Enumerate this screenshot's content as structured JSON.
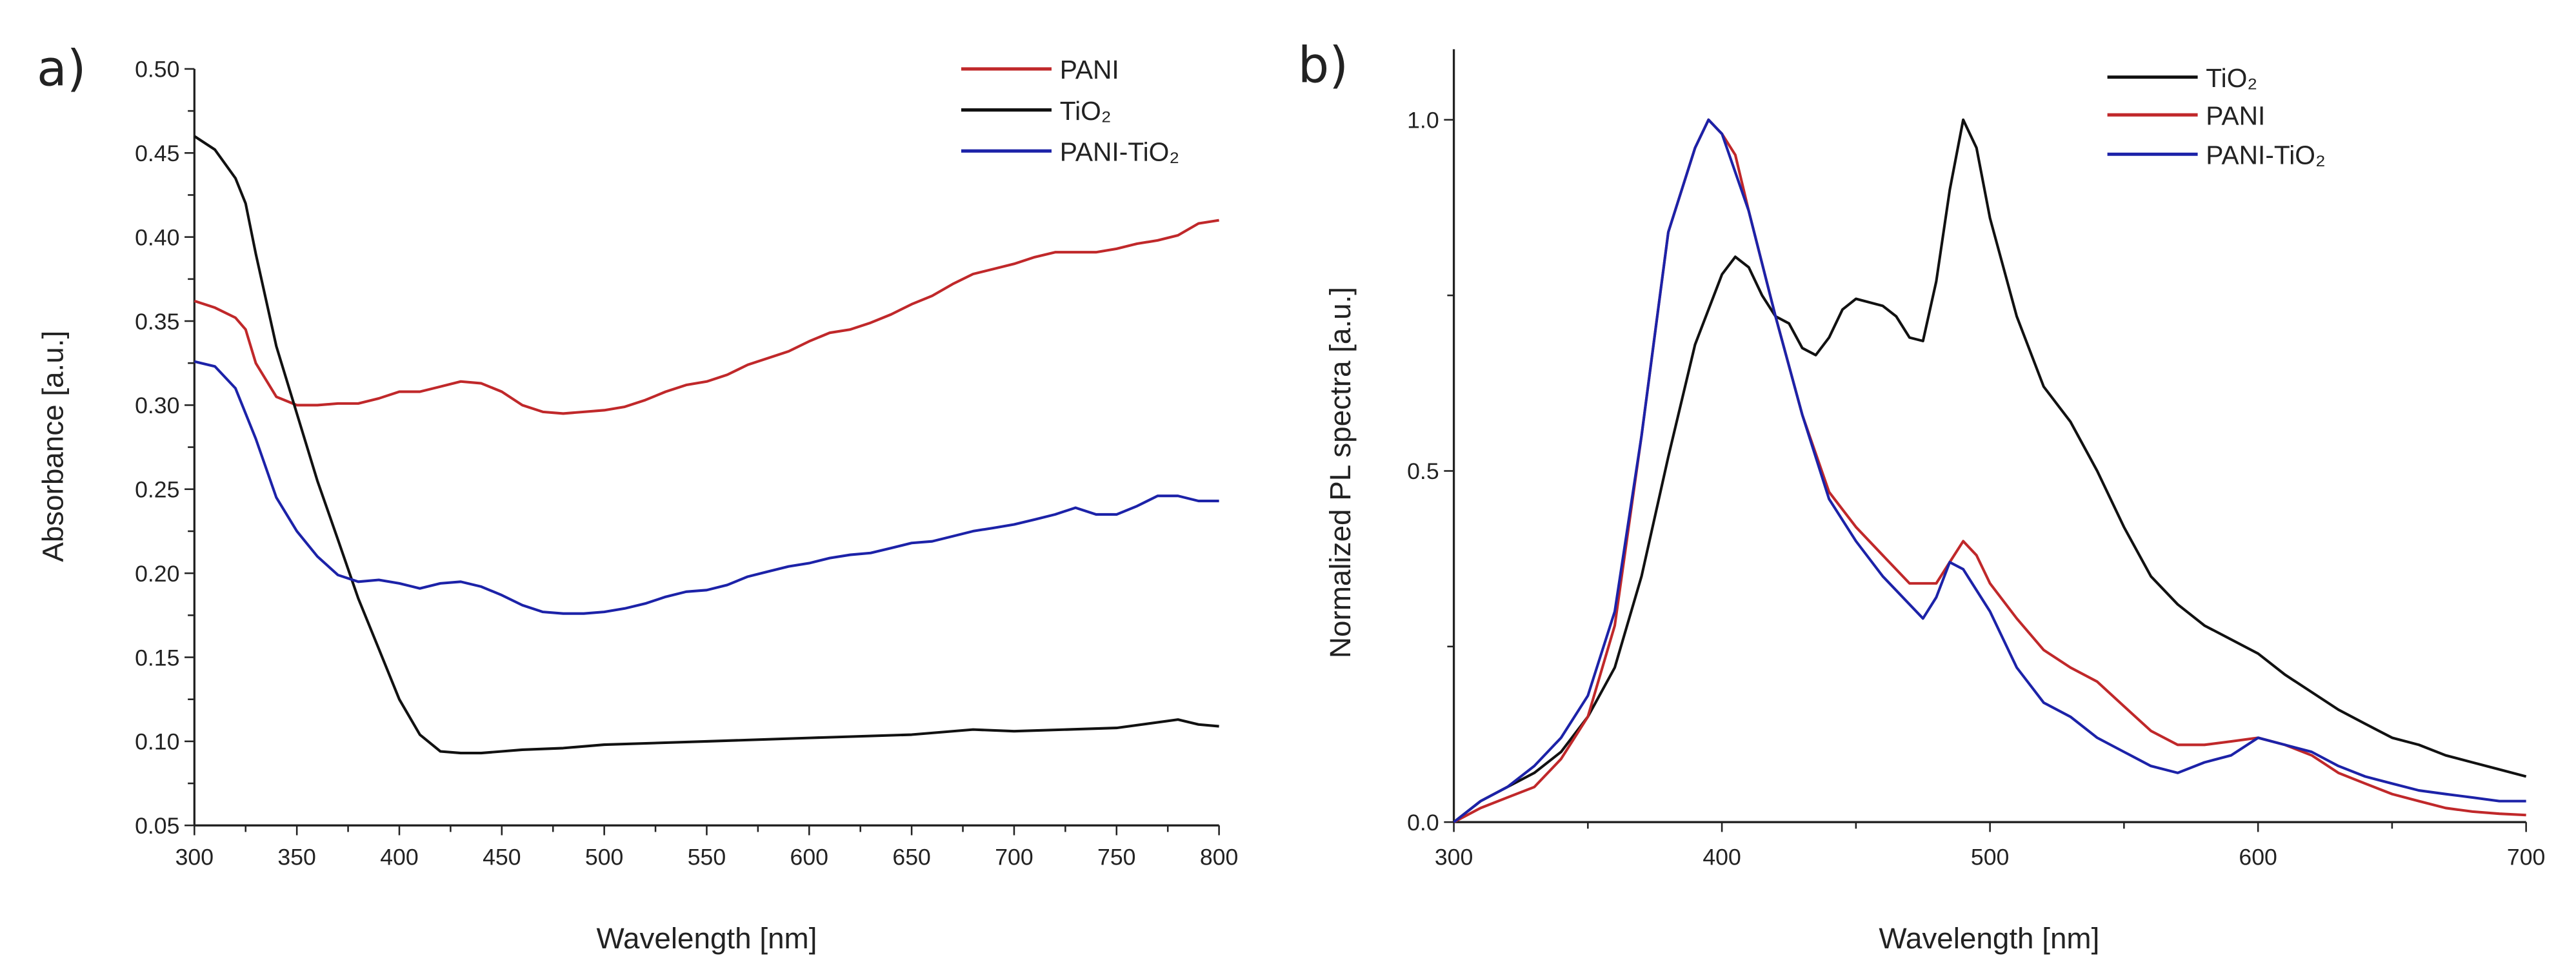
{
  "chart_data": [
    {
      "type": "line",
      "panel_label": "a)",
      "xlabel": "Wavelength [nm]",
      "ylabel": "Absorbance [a.u.]",
      "xlim": [
        300,
        800
      ],
      "ylim": [
        0.05,
        0.5
      ],
      "xticks": [
        300,
        350,
        400,
        450,
        500,
        550,
        600,
        650,
        700,
        750,
        800
      ],
      "yticks": [
        0.05,
        0.1,
        0.15,
        0.2,
        0.25,
        0.3,
        0.35,
        0.4,
        0.45,
        0.5
      ],
      "ytick_labels": [
        "0.05",
        "0.10",
        "0.15",
        "0.20",
        "0.25",
        "0.30",
        "0.35",
        "0.40",
        "0.45",
        "0.50"
      ],
      "grid": false,
      "legend_position": "top-right",
      "series": [
        {
          "name": "PANI",
          "color": "#c0282a",
          "x": [
            300,
            310,
            320,
            325,
            330,
            340,
            350,
            360,
            370,
            380,
            390,
            400,
            410,
            420,
            430,
            440,
            450,
            460,
            470,
            480,
            490,
            500,
            510,
            520,
            530,
            540,
            550,
            560,
            570,
            580,
            590,
            600,
            610,
            620,
            630,
            640,
            650,
            660,
            670,
            680,
            690,
            700,
            710,
            720,
            730,
            740,
            750,
            760,
            770,
            780,
            790,
            800
          ],
          "y": [
            0.362,
            0.358,
            0.352,
            0.345,
            0.325,
            0.305,
            0.3,
            0.3,
            0.301,
            0.301,
            0.304,
            0.308,
            0.308,
            0.311,
            0.314,
            0.313,
            0.308,
            0.3,
            0.296,
            0.295,
            0.296,
            0.297,
            0.299,
            0.303,
            0.308,
            0.312,
            0.314,
            0.318,
            0.324,
            0.328,
            0.332,
            0.338,
            0.343,
            0.345,
            0.349,
            0.354,
            0.36,
            0.365,
            0.372,
            0.378,
            0.381,
            0.384,
            0.388,
            0.391,
            0.391,
            0.391,
            0.393,
            0.396,
            0.398,
            0.401,
            0.408,
            0.41
          ]
        },
        {
          "name": "TiO₂",
          "color": "#111111",
          "x": [
            300,
            310,
            320,
            325,
            330,
            340,
            350,
            360,
            370,
            380,
            390,
            400,
            410,
            420,
            430,
            440,
            450,
            460,
            480,
            500,
            550,
            600,
            650,
            680,
            700,
            750,
            780,
            790,
            800
          ],
          "y": [
            0.46,
            0.452,
            0.435,
            0.42,
            0.39,
            0.335,
            0.295,
            0.255,
            0.22,
            0.185,
            0.155,
            0.125,
            0.104,
            0.094,
            0.093,
            0.093,
            0.094,
            0.095,
            0.096,
            0.098,
            0.1,
            0.102,
            0.104,
            0.107,
            0.106,
            0.108,
            0.113,
            0.11,
            0.109
          ]
        },
        {
          "name": "PANI-TiO₂",
          "color": "#1c22a8",
          "x": [
            300,
            310,
            320,
            330,
            340,
            350,
            360,
            370,
            380,
            390,
            400,
            410,
            420,
            430,
            440,
            450,
            460,
            470,
            480,
            490,
            500,
            510,
            520,
            530,
            540,
            550,
            560,
            570,
            580,
            590,
            600,
            610,
            620,
            630,
            640,
            650,
            660,
            670,
            680,
            690,
            700,
            710,
            720,
            730,
            740,
            750,
            760,
            770,
            780,
            790,
            800
          ],
          "y": [
            0.326,
            0.323,
            0.31,
            0.28,
            0.245,
            0.225,
            0.21,
            0.199,
            0.195,
            0.196,
            0.194,
            0.191,
            0.194,
            0.195,
            0.192,
            0.187,
            0.181,
            0.177,
            0.176,
            0.176,
            0.177,
            0.179,
            0.182,
            0.186,
            0.189,
            0.19,
            0.193,
            0.198,
            0.201,
            0.204,
            0.206,
            0.209,
            0.211,
            0.212,
            0.215,
            0.218,
            0.219,
            0.222,
            0.225,
            0.227,
            0.229,
            0.232,
            0.235,
            0.239,
            0.235,
            0.235,
            0.24,
            0.246,
            0.246,
            0.243,
            0.243
          ]
        }
      ]
    },
    {
      "type": "line",
      "panel_label": "b)",
      "xlabel": "Wavelength [nm]",
      "ylabel": "Normalized PL spectra [a.u.]",
      "xlim": [
        300,
        700
      ],
      "ylim": [
        0.0,
        1.1
      ],
      "xticks": [
        300,
        400,
        500,
        600,
        700
      ],
      "yticks": [
        0.0,
        0.5,
        1.0
      ],
      "ytick_labels": [
        "0.0",
        "0.5",
        "1.0"
      ],
      "grid": false,
      "legend_position": "top-right",
      "series": [
        {
          "name": "TiO₂",
          "color": "#111111",
          "x": [
            300,
            310,
            320,
            330,
            340,
            350,
            360,
            370,
            380,
            390,
            400,
            405,
            410,
            415,
            420,
            425,
            430,
            435,
            440,
            445,
            450,
            460,
            465,
            470,
            475,
            480,
            485,
            490,
            495,
            500,
            510,
            520,
            530,
            540,
            550,
            560,
            570,
            580,
            590,
            600,
            610,
            620,
            630,
            640,
            650,
            660,
            670,
            680,
            690,
            700
          ],
          "y": [
            0,
            0.03,
            0.05,
            0.07,
            0.1,
            0.15,
            0.22,
            0.35,
            0.52,
            0.68,
            0.78,
            0.805,
            0.79,
            0.75,
            0.72,
            0.71,
            0.675,
            0.665,
            0.69,
            0.73,
            0.745,
            0.735,
            0.72,
            0.69,
            0.685,
            0.77,
            0.9,
            1.0,
            0.96,
            0.86,
            0.72,
            0.62,
            0.57,
            0.5,
            0.42,
            0.35,
            0.31,
            0.28,
            0.26,
            0.24,
            0.21,
            0.185,
            0.16,
            0.14,
            0.12,
            0.11,
            0.095,
            0.085,
            0.075,
            0.065
          ]
        },
        {
          "name": "PANI",
          "color": "#c0282a",
          "x": [
            300,
            310,
            320,
            330,
            340,
            350,
            360,
            370,
            380,
            390,
            395,
            400,
            405,
            410,
            420,
            430,
            440,
            450,
            460,
            470,
            480,
            485,
            490,
            495,
            500,
            510,
            520,
            530,
            540,
            550,
            560,
            570,
            580,
            590,
            600,
            610,
            620,
            630,
            640,
            650,
            660,
            670,
            680,
            690,
            700
          ],
          "y": [
            0,
            0.02,
            0.035,
            0.05,
            0.09,
            0.15,
            0.28,
            0.55,
            0.84,
            0.96,
            1.0,
            0.98,
            0.95,
            0.87,
            0.72,
            0.58,
            0.47,
            0.42,
            0.38,
            0.34,
            0.34,
            0.37,
            0.4,
            0.38,
            0.34,
            0.29,
            0.245,
            0.22,
            0.2,
            0.165,
            0.13,
            0.11,
            0.11,
            0.115,
            0.12,
            0.11,
            0.095,
            0.07,
            0.055,
            0.04,
            0.03,
            0.02,
            0.015,
            0.012,
            0.01
          ]
        },
        {
          "name": "PANI-TiO₂",
          "color": "#1c22a8",
          "x": [
            300,
            310,
            320,
            330,
            340,
            350,
            360,
            370,
            380,
            390,
            395,
            400,
            410,
            420,
            430,
            440,
            450,
            460,
            470,
            475,
            480,
            485,
            490,
            500,
            510,
            520,
            530,
            540,
            550,
            560,
            570,
            580,
            590,
            600,
            610,
            620,
            630,
            640,
            650,
            660,
            670,
            680,
            690,
            700
          ],
          "y": [
            0,
            0.03,
            0.05,
            0.08,
            0.12,
            0.18,
            0.3,
            0.55,
            0.84,
            0.96,
            1.0,
            0.98,
            0.87,
            0.72,
            0.58,
            0.46,
            0.4,
            0.35,
            0.31,
            0.29,
            0.32,
            0.37,
            0.36,
            0.3,
            0.22,
            0.17,
            0.15,
            0.12,
            0.1,
            0.08,
            0.07,
            0.085,
            0.095,
            0.12,
            0.11,
            0.1,
            0.08,
            0.065,
            0.055,
            0.045,
            0.04,
            0.035,
            0.03,
            0.03
          ]
        }
      ]
    }
  ]
}
